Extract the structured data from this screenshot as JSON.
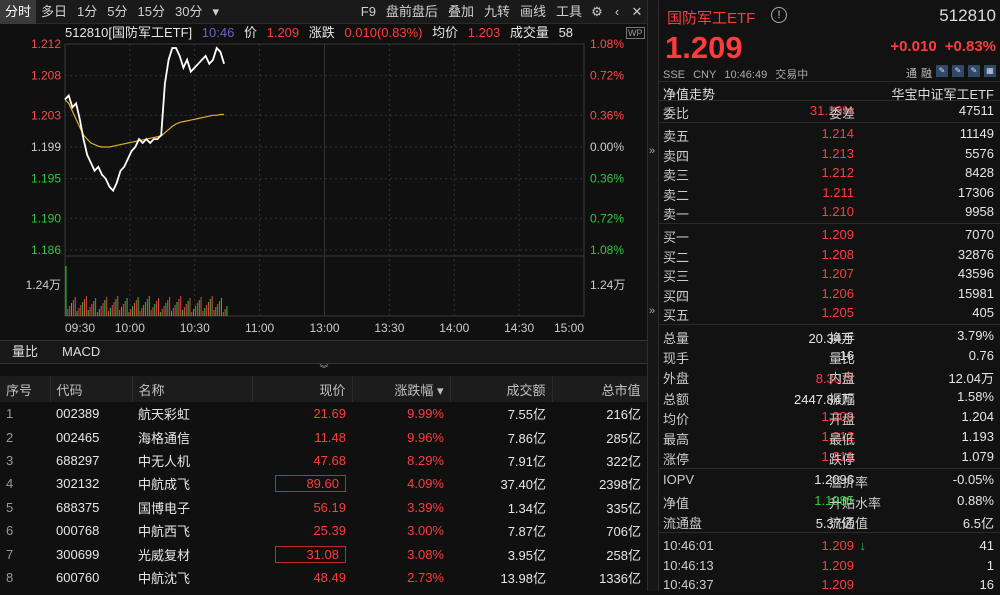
{
  "toolbar": {
    "left_tabs": [
      "分时",
      "多日",
      "1分",
      "5分",
      "15分",
      "30分"
    ],
    "dropdown_icon": "chevron-down-icon",
    "right_items": [
      "F9",
      "盘前盘后",
      "叠加",
      "九转",
      "画线",
      "工具"
    ],
    "settings_icon": "gear-icon",
    "collapse_icon": "chevron-left-icon",
    "close_icon": "close-icon"
  },
  "chart_info": {
    "title": "512810[国防军工ETF]",
    "time": "10:46",
    "price_label": "价",
    "price": "1.209",
    "change_label": "涨跌",
    "change": "0.010(0.83%)",
    "avg_label": "均价",
    "avg": "1.203",
    "volume_label": "成交量",
    "volume": "58",
    "wp_badge": "WP"
  },
  "chart_data": {
    "type": "line",
    "title": "",
    "x_ticks": [
      "09:30",
      "10:00",
      "10:30",
      "11:00",
      "13:00",
      "13:30",
      "14:00",
      "14:30",
      "15:00"
    ],
    "y_left_ticks": [
      "1.212",
      "1.208",
      "1.203",
      "1.199",
      "1.195",
      "1.190",
      "1.186"
    ],
    "y_right_ticks": [
      "1.08%",
      "0.72%",
      "0.36%",
      "0.00%",
      "0.36%",
      "0.72%",
      "1.08%"
    ],
    "ylim": [
      1.186,
      1.212
    ],
    "prev_close": 1.199,
    "volume_label": "1.24万",
    "series": [
      {
        "values": [
          1.205,
          1.2055,
          1.204,
          1.2045,
          1.2025,
          1.2,
          1.198,
          1.197,
          1.196,
          1.1965,
          1.1955,
          1.195,
          1.194,
          1.1935,
          1.1945,
          1.196,
          1.1965,
          1.1975,
          1.1985,
          1.199,
          1.2,
          1.1995,
          1.2,
          1.1995,
          1.2,
          1.2,
          1.2005,
          1.207,
          1.21,
          1.2115,
          1.2115,
          1.2105,
          1.209,
          1.21,
          1.2085,
          1.209,
          1.2095,
          1.21,
          1.2105,
          1.2095,
          1.21,
          1.2115,
          1.211,
          1.2095
        ]
      },
      {
        "values": [
          1.205,
          1.2045,
          1.2035,
          1.2025,
          1.2015,
          1.2005,
          1.2,
          1.1995,
          1.1993,
          1.1991,
          1.199,
          1.199,
          1.199,
          1.1991,
          1.1992,
          1.1993,
          1.1994,
          1.1995,
          1.1996,
          1.1997,
          1.1998,
          1.1999,
          1.2,
          1.2001,
          1.2002,
          1.2003,
          1.2004,
          1.2008,
          1.2012,
          1.2016,
          1.2019,
          1.2021,
          1.2022,
          1.2023,
          1.2024,
          1.2025,
          1.2026,
          1.2027,
          1.2028,
          1.2029,
          1.203,
          1.203,
          1.2031,
          1.2031
        ]
      }
    ],
    "colors": {
      "price": "#ffffff",
      "avg": "#e0b030",
      "grid": "#333333"
    }
  },
  "subtabs": [
    "量比",
    "MACD"
  ],
  "table": {
    "columns": [
      "序号",
      "代码",
      "名称",
      "现价",
      "涨跌幅",
      "成交额",
      "总市值"
    ],
    "sort_icon": "sort-down-icon",
    "rows": [
      {
        "no": "1",
        "code": "002389",
        "name": "航天彩虹",
        "price": "21.69",
        "chg": "9.99%",
        "amount": "7.55亿",
        "cap": "216亿",
        "boxed": false
      },
      {
        "no": "2",
        "code": "002465",
        "name": "海格通信",
        "price": "11.48",
        "chg": "9.96%",
        "amount": "7.86亿",
        "cap": "285亿",
        "boxed": false
      },
      {
        "no": "3",
        "code": "688297",
        "name": "中无人机",
        "price": "47.68",
        "chg": "8.29%",
        "amount": "7.91亿",
        "cap": "322亿",
        "boxed": false
      },
      {
        "no": "4",
        "code": "302132",
        "name": "中航成飞",
        "price": "89.60",
        "chg": "4.09%",
        "amount": "37.40亿",
        "cap": "2398亿",
        "boxed": true
      },
      {
        "no": "5",
        "code": "688375",
        "name": "国博电子",
        "price": "56.19",
        "chg": "3.39%",
        "amount": "1.34亿",
        "cap": "335亿",
        "boxed": false
      },
      {
        "no": "6",
        "code": "000768",
        "name": "中航西飞",
        "price": "25.39",
        "chg": "3.00%",
        "amount": "7.87亿",
        "cap": "706亿",
        "boxed": false
      },
      {
        "no": "7",
        "code": "300699",
        "name": "光威复材",
        "price": "31.08",
        "chg": "3.08%",
        "amount": "3.95亿",
        "cap": "258亿",
        "boxed": true
      },
      {
        "no": "8",
        "code": "600760",
        "name": "中航沈飞",
        "price": "48.49",
        "chg": "2.73%",
        "amount": "13.98亿",
        "cap": "1336亿",
        "boxed": false
      }
    ]
  },
  "panel": {
    "name": "国防军工ETF",
    "code": "512810",
    "price": "1.209",
    "change": "+0.010",
    "change_pct": "+0.83%",
    "meta": [
      "SSE",
      "CNY",
      "10:46:49",
      "交易中"
    ],
    "badges": [
      "通",
      "融"
    ],
    "nav_label": "净值走势",
    "index_name": "华宝中证军工ETF",
    "weibi_label": "委比",
    "weibi": "31.19%",
    "weicha_label": "委差",
    "weicha": "47511",
    "asks": [
      {
        "label": "卖五",
        "price": "1.214",
        "vol": "11149"
      },
      {
        "label": "卖四",
        "price": "1.213",
        "vol": "5576"
      },
      {
        "label": "卖三",
        "price": "1.212",
        "vol": "8428"
      },
      {
        "label": "卖二",
        "price": "1.211",
        "vol": "17306"
      },
      {
        "label": "卖一",
        "price": "1.210",
        "vol": "9958"
      }
    ],
    "bids": [
      {
        "label": "买一",
        "price": "1.209",
        "vol": "7070"
      },
      {
        "label": "买二",
        "price": "1.208",
        "vol": "32876"
      },
      {
        "label": "买三",
        "price": "1.207",
        "vol": "43596"
      },
      {
        "label": "买四",
        "price": "1.206",
        "vol": "15981"
      },
      {
        "label": "买五",
        "price": "1.205",
        "vol": "405"
      }
    ],
    "stats": [
      {
        "l1": "总量",
        "v1": "20.34万",
        "c1": "white",
        "l2": "换手",
        "v2": "3.79%",
        "c2": "white"
      },
      {
        "l1": "现手",
        "v1": "16",
        "c1": "white",
        "l2": "量比",
        "v2": "0.76",
        "c2": "white"
      },
      {
        "l1": "外盘",
        "v1": "8.30万",
        "c1": "red",
        "l2": "内盘",
        "v2": "12.04万",
        "c2": "green"
      },
      {
        "l1": "总额",
        "v1": "2447.84万",
        "c1": "white",
        "l2": "振幅",
        "v2": "1.58%",
        "c2": "white"
      },
      {
        "l1": "均价",
        "v1": "1.203",
        "c1": "red",
        "l2": "开盘",
        "v2": "1.204",
        "c2": "red"
      },
      {
        "l1": "最高",
        "v1": "1.212",
        "c1": "red",
        "l2": "最低",
        "v2": "1.193",
        "c2": "green"
      },
      {
        "l1": "涨停",
        "v1": "1.319",
        "c1": "red",
        "l2": "跌停",
        "v2": "1.079",
        "c2": "green"
      }
    ],
    "etf_stats": [
      {
        "l1": "IOPV",
        "v1": "1.2096",
        "c1": "white",
        "l2": "溢折率",
        "v2": "-0.05%",
        "c2": "green"
      },
      {
        "l1": "净值",
        "v1": "1.1985",
        "c1": "green",
        "l2": "升贴水率",
        "v2": "0.88%",
        "c2": "red"
      },
      {
        "l1": "流通盘",
        "v1": "5.37亿",
        "c1": "white",
        "l2": "流通值",
        "v2": "6.5亿",
        "c2": "white"
      }
    ],
    "ticks": [
      {
        "time": "10:46:01",
        "price": "1.209",
        "arrow": "↓",
        "vol": "41"
      },
      {
        "time": "10:46:13",
        "price": "1.209",
        "arrow": "",
        "vol": "1"
      },
      {
        "time": "10:46:37",
        "price": "1.209",
        "arrow": "",
        "vol": "16"
      }
    ]
  }
}
